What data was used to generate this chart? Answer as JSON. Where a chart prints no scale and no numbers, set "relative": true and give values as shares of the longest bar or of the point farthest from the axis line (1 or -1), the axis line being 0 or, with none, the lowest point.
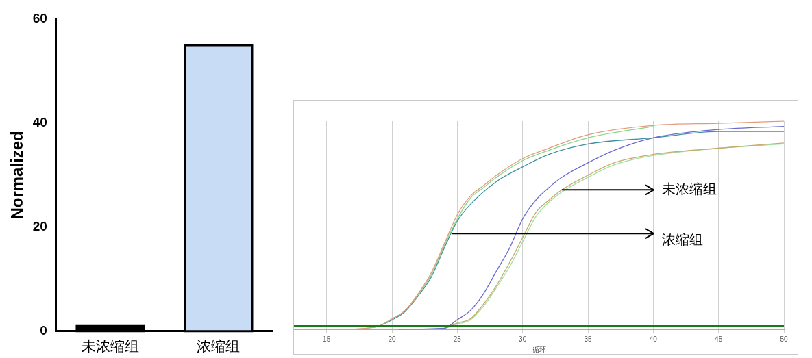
{
  "chart_data": [
    {
      "type": "bar",
      "ylabel": "Normalized",
      "categories": [
        "未浓缩组",
        "浓缩组"
      ],
      "values": [
        1,
        55
      ],
      "colors": [
        "#000000",
        "#c9dcf5"
      ],
      "ylim": [
        0,
        60
      ],
      "yticks": [
        0,
        20,
        40,
        60
      ]
    },
    {
      "type": "line",
      "relative": true,
      "xlabel": "循环",
      "xlim": [
        12.5,
        50
      ],
      "xticks": [
        15,
        20,
        25,
        30,
        35,
        40,
        45,
        50
      ],
      "grid": "x",
      "tick_labels": "x",
      "series": [
        {
          "color": "#e39a7c",
          "x": [
            17,
            19,
            20,
            21,
            22,
            23,
            24,
            25,
            26,
            27,
            28,
            30,
            32,
            35,
            40,
            45,
            50
          ],
          "values": [
            0,
            0.016,
            0.05,
            0.09,
            0.17,
            0.27,
            0.41,
            0.55,
            0.64,
            0.69,
            0.74,
            0.82,
            0.87,
            0.935,
            0.98,
            0.99,
            1.0
          ]
        },
        {
          "color": "#86d886",
          "x": [
            18,
            19,
            20,
            21,
            22,
            23,
            24,
            25,
            26,
            27,
            28,
            30,
            32,
            35,
            40
          ],
          "values": [
            0.005,
            0.016,
            0.05,
            0.09,
            0.165,
            0.26,
            0.4,
            0.53,
            0.63,
            0.68,
            0.73,
            0.81,
            0.86,
            0.92,
            0.975
          ]
        },
        {
          "color": "#3f8f9e",
          "x": [
            18.5,
            19,
            20,
            21,
            22,
            23,
            24,
            25,
            26,
            28,
            30,
            32,
            35,
            40,
            45,
            50
          ],
          "values": [
            0.008,
            0.016,
            0.045,
            0.085,
            0.16,
            0.25,
            0.39,
            0.52,
            0.6,
            0.71,
            0.78,
            0.84,
            0.89,
            0.92,
            0.95,
            0.95
          ]
        },
        {
          "color": "#6b6bcf",
          "x": [
            20.5,
            24,
            25,
            26,
            27,
            28,
            29,
            30,
            31,
            32,
            33,
            35,
            37,
            40,
            45,
            50
          ],
          "values": [
            0,
            0.005,
            0.046,
            0.09,
            0.17,
            0.28,
            0.39,
            0.53,
            0.62,
            0.68,
            0.73,
            0.8,
            0.86,
            0.92,
            0.96,
            0.975
          ]
        },
        {
          "color": "#c9a86a",
          "x": [
            23,
            24,
            25,
            26,
            27,
            28,
            29,
            30,
            31,
            32,
            33,
            35,
            37,
            40,
            45,
            50
          ],
          "values": [
            0,
            0.005,
            0.03,
            0.05,
            0.12,
            0.21,
            0.32,
            0.44,
            0.56,
            0.62,
            0.67,
            0.74,
            0.8,
            0.84,
            0.87,
            0.895
          ]
        },
        {
          "color": "#9ee09e",
          "x": [
            23.5,
            24,
            25,
            26,
            27,
            28,
            29,
            30,
            31,
            32,
            33,
            35,
            37,
            40,
            45,
            50
          ],
          "values": [
            0,
            0.004,
            0.025,
            0.045,
            0.11,
            0.2,
            0.3,
            0.42,
            0.54,
            0.61,
            0.66,
            0.73,
            0.79,
            0.835,
            0.87,
            0.89
          ]
        },
        {
          "color": "#e8906a",
          "x": [
            16.5,
            50
          ],
          "values": [
            0,
            0
          ]
        }
      ],
      "ref_lines": [
        {
          "axis": "y",
          "value": 0.016,
          "color": "#1a7a1a"
        }
      ],
      "annotations": [
        {
          "text": "未浓缩组",
          "x": 33,
          "y": 0.67
        },
        {
          "text": "浓缩组",
          "x": 24.6,
          "y": 0.46
        }
      ]
    }
  ]
}
